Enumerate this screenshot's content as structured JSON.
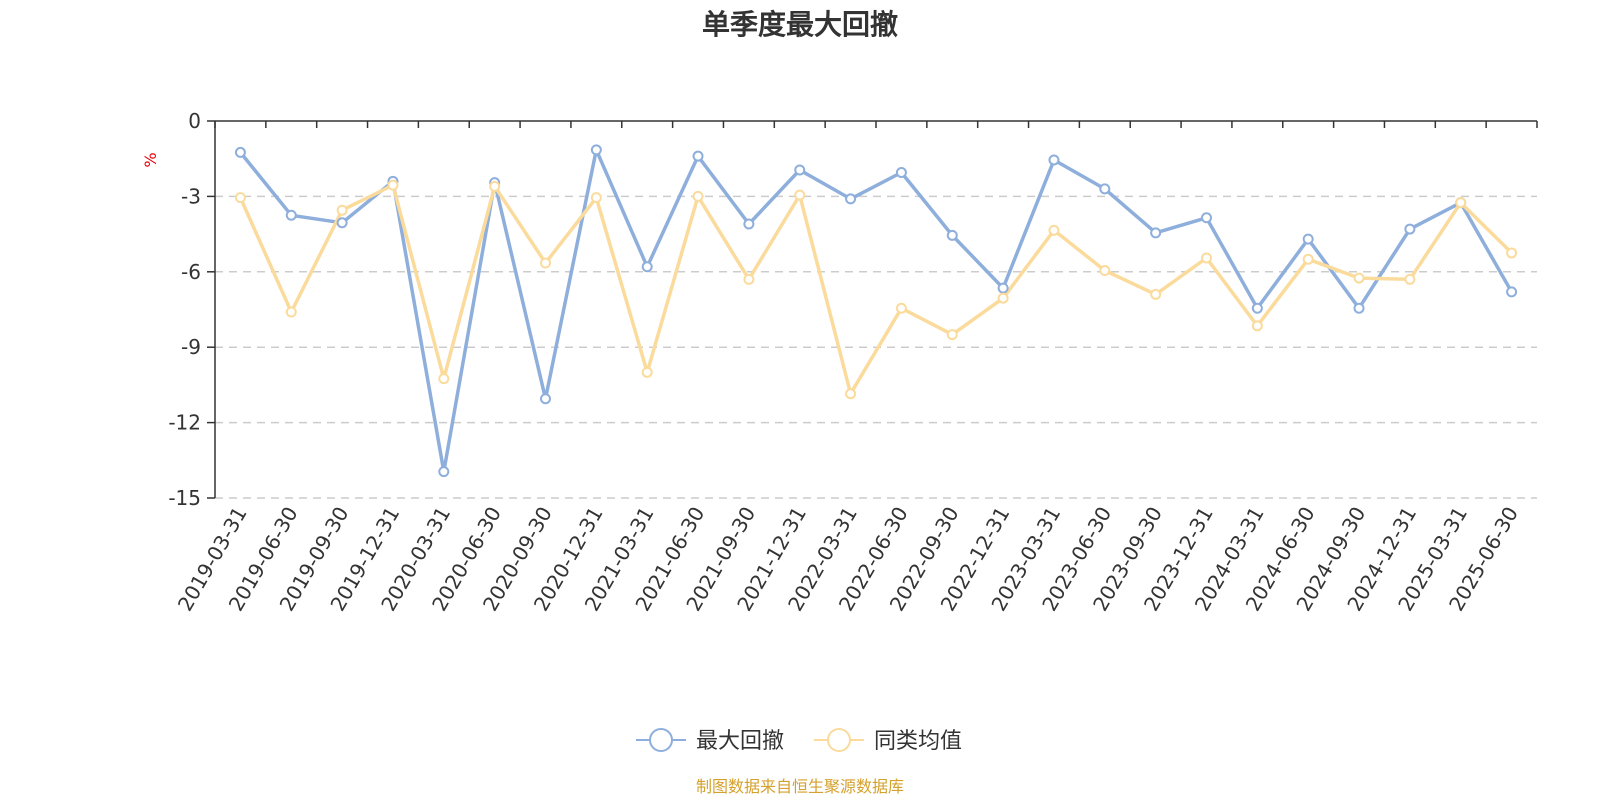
{
  "chart_data": {
    "type": "line",
    "title": "单季度最大回撤",
    "ylabel": "%",
    "ylim": [
      -15,
      0
    ],
    "yticks": [
      0,
      -3,
      -6,
      -9,
      -12,
      -15
    ],
    "grid": "dashed horizontal",
    "legend_position": "bottom-center",
    "x": [
      "2019-03-31",
      "2019-06-30",
      "2019-09-30",
      "2019-12-31",
      "2020-03-31",
      "2020-06-30",
      "2020-09-30",
      "2020-12-31",
      "2021-03-31",
      "2021-06-30",
      "2021-09-30",
      "2021-12-31",
      "2022-03-31",
      "2022-06-30",
      "2022-09-30",
      "2022-12-31",
      "2023-03-31",
      "2023-06-30",
      "2023-09-30",
      "2023-12-31",
      "2024-03-31",
      "2024-06-30",
      "2024-09-30",
      "2024-12-31",
      "2025-03-31",
      "2025-06-30"
    ],
    "series": [
      {
        "name": "最大回撤",
        "color": "#8eaedc",
        "values": [
          -1.25,
          -3.75,
          -4.05,
          -2.4,
          -13.95,
          -2.45,
          -11.05,
          -1.15,
          -5.8,
          -1.4,
          -4.1,
          -1.95,
          -3.1,
          -2.05,
          -4.55,
          -6.65,
          -1.55,
          -2.7,
          -4.45,
          -3.85,
          -7.45,
          -4.7,
          -7.45,
          -4.3,
          -3.25,
          -6.8
        ]
      },
      {
        "name": "同类均值",
        "color": "#fbdb9c",
        "values": [
          -3.05,
          -7.6,
          -3.55,
          -2.55,
          -10.25,
          -2.6,
          -5.65,
          -3.05,
          -10.0,
          -3.0,
          -6.3,
          -2.95,
          -10.85,
          -7.45,
          -8.5,
          -7.05,
          -4.35,
          -5.95,
          -6.9,
          -5.45,
          -8.15,
          -5.5,
          -6.25,
          -6.3,
          -3.25,
          -5.25
        ]
      }
    ],
    "source_note": "制图数据来自恒生聚源数据库",
    "colors": {
      "unit_label": "#e8000b",
      "source_note": "#d4a12d",
      "axis": "#333333",
      "grid": "#cccccc"
    }
  }
}
